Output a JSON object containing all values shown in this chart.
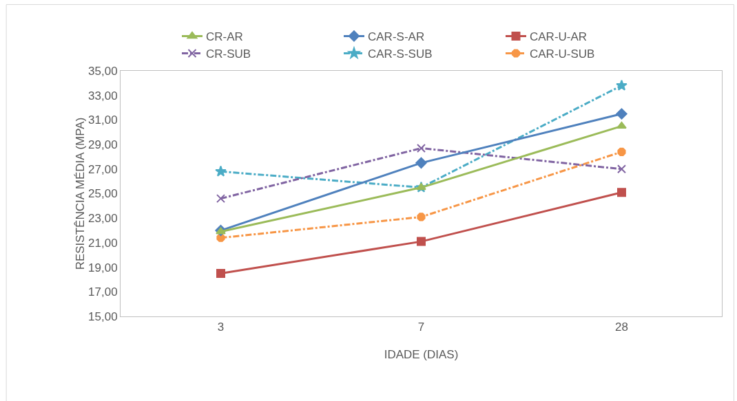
{
  "chart_data": {
    "type": "line",
    "xlabel": "IDADE (DIAS)",
    "ylabel": "RESISTÊNCIA MÉDIA (MPA)",
    "categories": [
      "3",
      "7",
      "28"
    ],
    "ylim": [
      15,
      35
    ],
    "yticks": [
      {
        "value": 15,
        "label": "15,00"
      },
      {
        "value": 17,
        "label": "17,00"
      },
      {
        "value": 19,
        "label": "19,00"
      },
      {
        "value": 21,
        "label": "21,00"
      },
      {
        "value": 23,
        "label": "23,00"
      },
      {
        "value": 25,
        "label": "25,00"
      },
      {
        "value": 27,
        "label": "27,00"
      },
      {
        "value": 29,
        "label": "29,00"
      },
      {
        "value": 31,
        "label": "31,00"
      },
      {
        "value": 33,
        "label": "33,00"
      },
      {
        "value": 35,
        "label": "35,00"
      }
    ],
    "grid": false,
    "legend": "top",
    "series": [
      {
        "name": "CR-AR",
        "color": "#9bbb59",
        "values": [
          21.9,
          25.5,
          30.5
        ],
        "marker": "triangle",
        "line_style": "solid"
      },
      {
        "name": "CAR-S-AR",
        "color": "#4f81bd",
        "values": [
          22.0,
          27.5,
          31.5
        ],
        "marker": "diamond",
        "line_style": "solid"
      },
      {
        "name": "CAR-U-AR",
        "color": "#c0504d",
        "values": [
          18.5,
          21.1,
          25.1
        ],
        "marker": "square",
        "line_style": "solid"
      },
      {
        "name": "CR-SUB",
        "color": "#8064a2",
        "values": [
          24.6,
          28.7,
          27.0
        ],
        "marker": "cross",
        "line_style": "dashed"
      },
      {
        "name": "CAR-S-SUB",
        "color": "#4bacc6",
        "values": [
          26.8,
          25.5,
          33.8
        ],
        "marker": "star",
        "line_style": "dashed"
      },
      {
        "name": "CAR-U-SUB",
        "color": "#f79646",
        "values": [
          21.4,
          23.1,
          28.4
        ],
        "marker": "circle",
        "line_style": "dashed"
      }
    ]
  }
}
